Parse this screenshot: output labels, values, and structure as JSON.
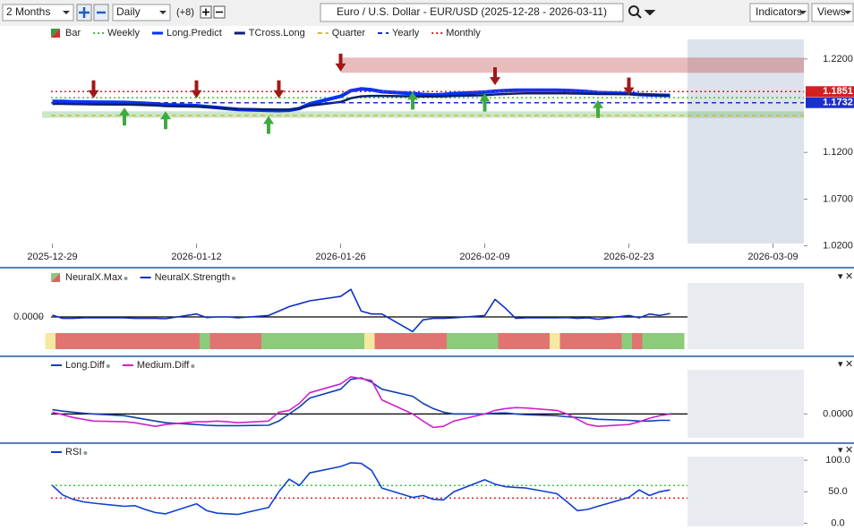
{
  "toolbar": {
    "range": "2 Months",
    "interval": "Daily",
    "extra": "(+8)",
    "title": "Euro / U.S. Dollar - EUR/USD (2025-12-28 - 2026-03-11)",
    "indicators": "Indicators",
    "views": "Views"
  },
  "chart_data": [
    {
      "type": "line",
      "x": [
        "2025-12-29",
        "2025-12-30",
        "2025-12-31",
        "2026-01-01",
        "2026-01-02",
        "2026-01-05",
        "2026-01-06",
        "2026-01-07",
        "2026-01-08",
        "2026-01-09",
        "2026-01-12",
        "2026-01-13",
        "2026-01-14",
        "2026-01-15",
        "2026-01-16",
        "2026-01-19",
        "2026-01-20",
        "2026-01-21",
        "2026-01-22",
        "2026-01-23",
        "2026-01-26",
        "2026-01-27",
        "2026-01-28",
        "2026-01-29",
        "2026-01-30",
        "2026-02-02",
        "2026-02-03",
        "2026-02-04",
        "2026-02-05",
        "2026-02-06",
        "2026-02-09",
        "2026-02-10",
        "2026-02-11",
        "2026-02-12",
        "2026-02-13",
        "2026-02-16",
        "2026-02-17",
        "2026-02-18",
        "2026-02-19",
        "2026-02-20",
        "2026-02-23",
        "2026-02-24",
        "2026-02-25",
        "2026-02-26",
        "2026-02-27"
      ],
      "xlim": [
        "2025-12-28",
        "2026-03-12"
      ],
      "xticks": [
        "2025-12-29",
        "2026-01-12",
        "2026-01-26",
        "2026-02-09",
        "2026-02-23",
        "2026-03-09"
      ],
      "ylim": [
        1.01,
        1.24
      ],
      "yticks": [
        {
          "value": 1.22,
          "label": "1.2200"
        },
        {
          "value": 1.12,
          "label": "1.1200"
        },
        {
          "value": 1.07,
          "label": "1.0700"
        },
        {
          "value": 1.02,
          "label": "1.0200"
        }
      ],
      "series": [
        {
          "name": "Bar",
          "color": "#d32f2f",
          "color2": "#3a9a3a"
        },
        {
          "name": "Weekly",
          "color": "#44bb44",
          "style": "dotted",
          "level": 1.1785
        },
        {
          "name": "Long.Predict",
          "color": "#0033ff",
          "width": 4,
          "values": [
            1.1745,
            1.1745,
            1.1742,
            1.174,
            1.1738,
            1.1735,
            1.173,
            1.1725,
            1.172,
            1.171,
            1.17,
            1.169,
            1.168,
            1.167,
            1.166,
            1.165,
            1.1648,
            1.1652,
            1.167,
            1.172,
            1.18,
            1.186,
            1.188,
            1.187,
            1.185,
            1.183,
            1.182,
            1.1815,
            1.182,
            1.183,
            1.1845,
            1.1855,
            1.186,
            1.1865,
            1.1865,
            1.1865,
            1.1862,
            1.1858,
            1.185,
            1.184,
            1.183,
            1.182,
            1.1815,
            1.1812,
            1.181
          ]
        },
        {
          "name": "TCross.Long",
          "color": "#0a1f6e",
          "width": 2.5,
          "values": [
            1.172,
            1.172,
            1.1718,
            1.1716,
            1.1714,
            1.1712,
            1.171,
            1.1706,
            1.1702,
            1.1696,
            1.169,
            1.1684,
            1.1678,
            1.1672,
            1.1666,
            1.166,
            1.1658,
            1.166,
            1.167,
            1.17,
            1.174,
            1.178,
            1.18,
            1.1805,
            1.1805,
            1.18,
            1.1798,
            1.1798,
            1.18,
            1.1805,
            1.1812,
            1.182,
            1.1825,
            1.183,
            1.1832,
            1.1832,
            1.1832,
            1.183,
            1.1828,
            1.1825,
            1.1822,
            1.1818,
            1.1815,
            1.1812,
            1.181
          ]
        },
        {
          "name": "Quarter",
          "color": "#d4b83c",
          "style": "dashed",
          "level": 1.1595
        },
        {
          "name": "Yearly",
          "color": "#1a2fcf",
          "style": "dashed",
          "level": 1.1732,
          "tag": true
        },
        {
          "name": "Monthly",
          "color": "#d61f1f",
          "style": "dotted",
          "level": 1.1851,
          "tag": true
        }
      ],
      "zones": [
        {
          "from": 1.2052,
          "to": 1.2215,
          "start": "2026-01-26",
          "color": "#b22222"
        },
        {
          "from": 1.157,
          "to": 1.164,
          "start": "2025-12-28",
          "color": "#4caf50"
        }
      ],
      "signals": {
        "sell": {
          "color": "#a01818",
          "x": [
            "2026-01-02",
            "2026-01-12",
            "2026-01-20",
            "2026-01-26",
            "2026-02-10",
            "2026-02-23"
          ],
          "values": [
            1.178,
            1.178,
            1.178,
            1.2066,
            1.192,
            1.181
          ]
        },
        "buy": {
          "color": "#3faa3f",
          "x": [
            "2026-01-05",
            "2026-01-09",
            "2026-01-19",
            "2026-02-02",
            "2026-02-09",
            "2026-02-20"
          ],
          "values": [
            1.168,
            1.164,
            1.159,
            1.185,
            1.183,
            1.176
          ]
        }
      }
    },
    {
      "type": "line",
      "ylim": [
        -1.1,
        1.1
      ],
      "ytick_side": "left",
      "yticks": [
        {
          "value": 0,
          "label": "0.0000"
        }
      ],
      "levels": [
        {
          "value": 0,
          "color": "#000000"
        }
      ],
      "series": [
        {
          "name": "NeuralX.Max",
          "color": "#d9645f",
          "color2": "#8cc97a",
          "state_colors": [
            "#e07470",
            "#f5e9a0",
            "#8ccb7a"
          ],
          "values": [
            0,
            -1,
            -1,
            -1,
            -1,
            -1,
            -1,
            -1,
            -1,
            -1,
            -1,
            1,
            -1,
            -1,
            -1,
            1,
            1,
            1,
            1,
            1,
            1,
            1,
            1,
            0,
            -1,
            -1,
            -1,
            -1,
            -1,
            1,
            1,
            1,
            -1,
            -1,
            -1,
            0,
            -1,
            -1,
            -1,
            -1,
            1,
            -1,
            1,
            1,
            1
          ]
        },
        {
          "name": "NeuralX.Strength",
          "color": "#1030c0",
          "values": [
            0.06,
            -0.05,
            -0.05,
            -0.03,
            -0.03,
            -0.03,
            -0.05,
            -0.05,
            -0.05,
            -0.06,
            0.1,
            -0.02,
            0.0,
            0.0,
            -0.03,
            0.05,
            0.2,
            0.35,
            0.45,
            0.55,
            0.7,
            0.94,
            0.2,
            0.1,
            0.1,
            -0.5,
            -0.1,
            -0.05,
            -0.05,
            -0.03,
            0.05,
            0.6,
            0.3,
            -0.05,
            -0.03,
            -0.03,
            -0.02,
            -0.05,
            -0.03,
            -0.08,
            0.05,
            -0.03,
            0.1,
            0.05,
            0.12
          ]
        }
      ]
    },
    {
      "type": "line",
      "ylim": [
        -0.7,
        1.2
      ],
      "yticks": [
        {
          "value": 0,
          "label": "0.0000"
        }
      ],
      "levels": [
        {
          "value": 0,
          "color": "#000000"
        }
      ],
      "series": [
        {
          "name": "Long.Diff",
          "color": "#1040b0",
          "values": [
            0.12,
            0.08,
            0.05,
            0.02,
            0.0,
            -0.05,
            -0.1,
            -0.15,
            -0.2,
            -0.25,
            -0.3,
            -0.32,
            -0.33,
            -0.33,
            -0.33,
            -0.32,
            -0.2,
            0.0,
            0.2,
            0.45,
            0.7,
            0.98,
            1.02,
            0.9,
            0.7,
            0.5,
            0.3,
            0.15,
            0.05,
            0.0,
            0.0,
            0.02,
            0.03,
            0.0,
            -0.02,
            -0.05,
            -0.08,
            -0.1,
            -0.12,
            -0.15,
            -0.18,
            -0.2,
            -0.2,
            -0.18,
            -0.18
          ]
        },
        {
          "name": "Medium.Diff",
          "color": "#d020d0",
          "values": [
            0.05,
            -0.02,
            -0.1,
            -0.15,
            -0.2,
            -0.22,
            -0.25,
            -0.3,
            -0.35,
            -0.3,
            -0.22,
            -0.22,
            -0.2,
            -0.22,
            -0.25,
            -0.2,
            0.05,
            0.1,
            0.3,
            0.6,
            0.85,
            1.05,
            1.0,
            0.95,
            0.4,
            0.0,
            -0.2,
            -0.38,
            -0.35,
            -0.2,
            0.0,
            0.1,
            0.15,
            0.18,
            0.17,
            0.1,
            0.0,
            -0.15,
            -0.3,
            -0.35,
            -0.3,
            -0.22,
            -0.12,
            -0.05,
            0.0
          ]
        }
      ]
    },
    {
      "type": "line",
      "ylim": [
        -5,
        120
      ],
      "yticks": [
        {
          "value": 100,
          "label": "100.0"
        },
        {
          "value": 50,
          "label": "50.0"
        },
        {
          "value": 0,
          "label": "0.0"
        }
      ],
      "levels": [
        {
          "value": 60,
          "color": "#33cc33",
          "style": "dotted"
        },
        {
          "value": 40,
          "color": "#dd2222",
          "style": "dotted"
        }
      ],
      "series": [
        {
          "name": "RSI",
          "color": "#1040d0",
          "values": [
            60,
            45,
            38,
            34,
            32,
            27,
            28,
            22,
            17,
            15,
            31,
            20,
            16,
            15,
            14,
            25,
            50,
            70,
            60,
            80,
            90,
            96,
            95,
            84,
            56,
            41,
            44,
            38,
            37,
            50,
            69,
            62,
            58,
            57,
            56,
            47,
            34,
            20,
            22,
            27,
            41,
            53,
            44,
            50,
            53
          ]
        }
      ]
    }
  ]
}
